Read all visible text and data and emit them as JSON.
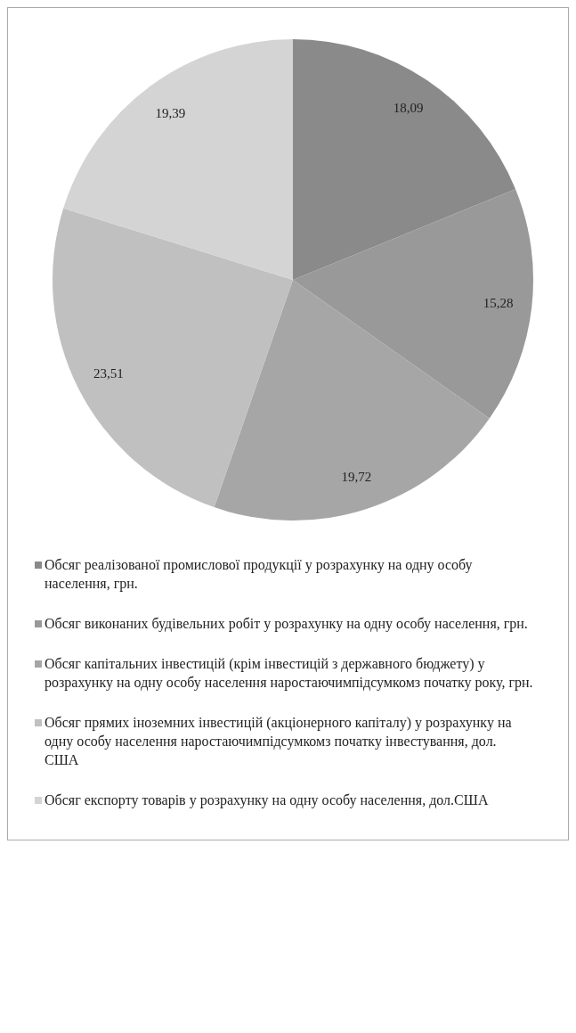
{
  "chart_data": {
    "type": "pie",
    "categories": [
      "Обсяг реалізованої промислової продукції у розрахунку на одну особу населення, грн.",
      "Обсяг виконаних будівельних робіт у розрахунку на одну особу населення, грн.",
      "Обсяг капітальних інвестицій (крім інвестицій з державного бюджету) у розрахунку на одну особу населення наростаючимпідсумкомз початку року, грн.",
      "Обсяг прямих іноземних інвестицій (акціонерного капіталу) у розрахунку на одну особу населення наростаючимпідсумкомз початку інвестування, дол. США",
      "Обсяг експорту товарів у розрахунку на одну особу населення, дол.США"
    ],
    "values": [
      18.09,
      15.28,
      19.72,
      23.51,
      19.39
    ],
    "value_labels": [
      "18,09",
      "15,28",
      "19,72",
      "23,51",
      "19,39"
    ],
    "colors": [
      "#8a8a8a",
      "#999999",
      "#a6a6a6",
      "#c0c0c0",
      "#d4d4d4"
    ],
    "legend": "bottom"
  }
}
